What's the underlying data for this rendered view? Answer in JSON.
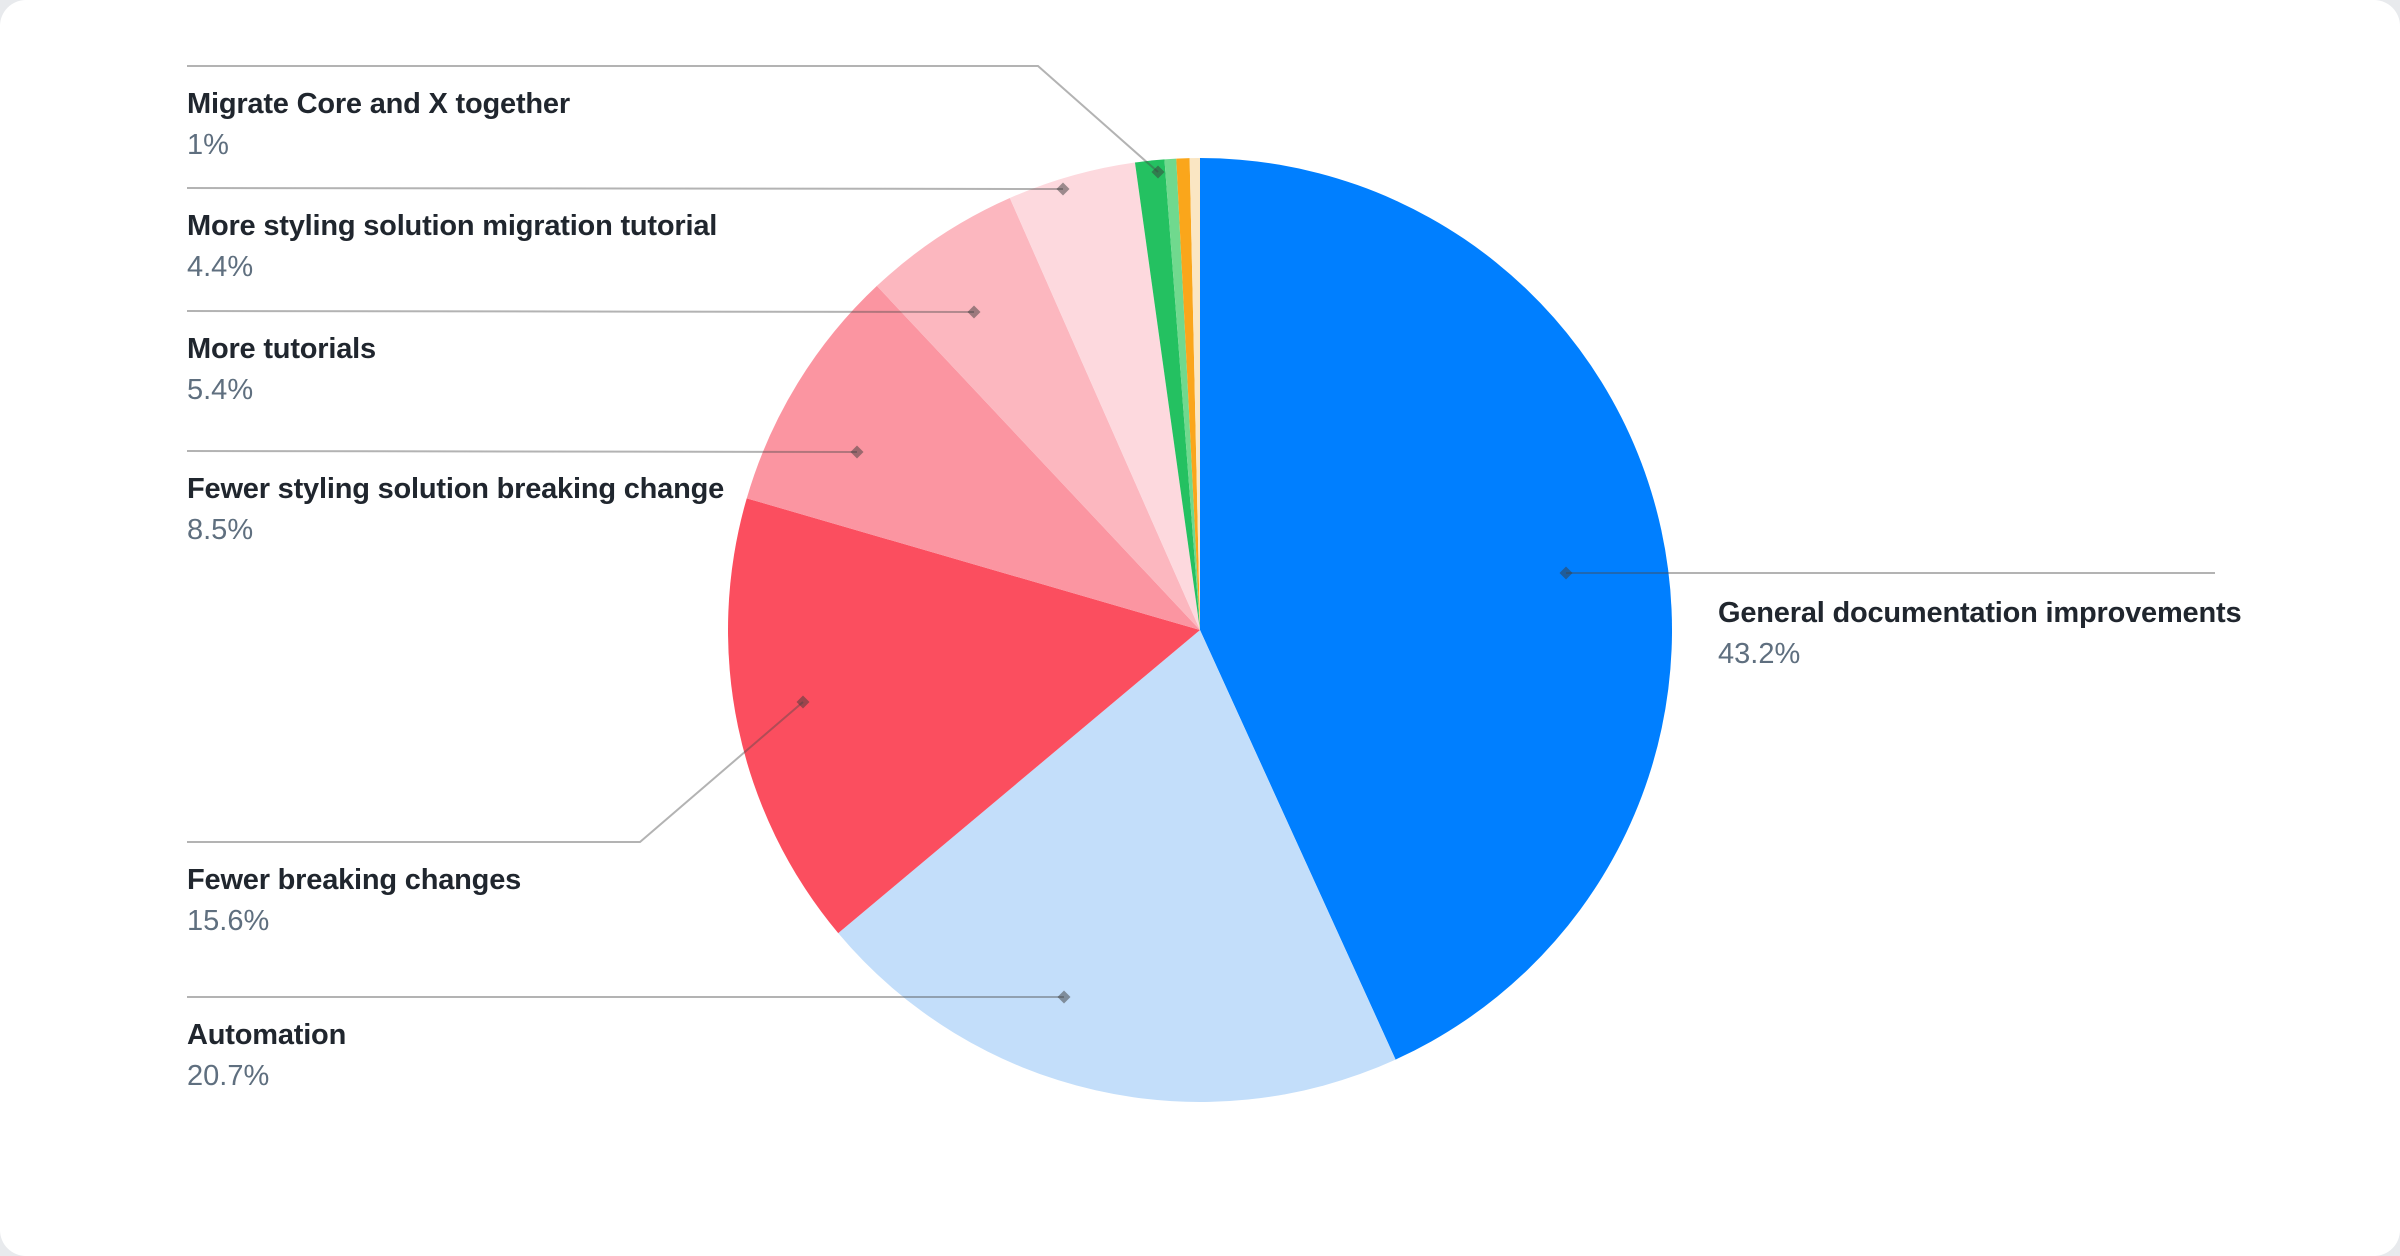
{
  "page": {
    "background": "#E8EAED",
    "card_background": "#FFFFFF"
  },
  "chart_data": {
    "type": "pie",
    "title": "",
    "unit": "%",
    "legend_position": "callout-labels",
    "start_angle_deg": 0,
    "direction": "clockwise",
    "leader_line_color": "rgba(75,75,75,0.42)",
    "label_title_color": "#20262e",
    "label_pct_color": "#5f6f7f",
    "slices": [
      {
        "label": "General documentation improvements",
        "value": 43.2,
        "pct_label": "43.2%",
        "color": "#007FFF"
      },
      {
        "label": "Automation",
        "value": 20.7,
        "pct_label": "20.7%",
        "color": "#C3DEFA"
      },
      {
        "label": "Fewer breaking changes",
        "value": 15.6,
        "pct_label": "15.6%",
        "color": "#FB4E5F"
      },
      {
        "label": "Fewer styling solution breaking change",
        "value": 8.5,
        "pct_label": "8.5%",
        "color": "#FB95A1"
      },
      {
        "label": "More tutorials",
        "value": 5.4,
        "pct_label": "5.4%",
        "color": "#FCB7BF"
      },
      {
        "label": "More styling solution migration tutorial",
        "value": 4.4,
        "pct_label": "4.4%",
        "color": "#FDD9DE"
      },
      {
        "label": "Migrate Core and X together",
        "value": 1,
        "pct_label": "1%",
        "color": "#24C161"
      },
      {
        "label": "",
        "value": 0.4,
        "pct_label": "",
        "color": "#70D98E"
      },
      {
        "label": "",
        "value": 0.45,
        "pct_label": "",
        "color": "#FAA61B"
      },
      {
        "label": "",
        "value": 0.35,
        "pct_label": "",
        "color": "#FAE6C3"
      }
    ]
  }
}
